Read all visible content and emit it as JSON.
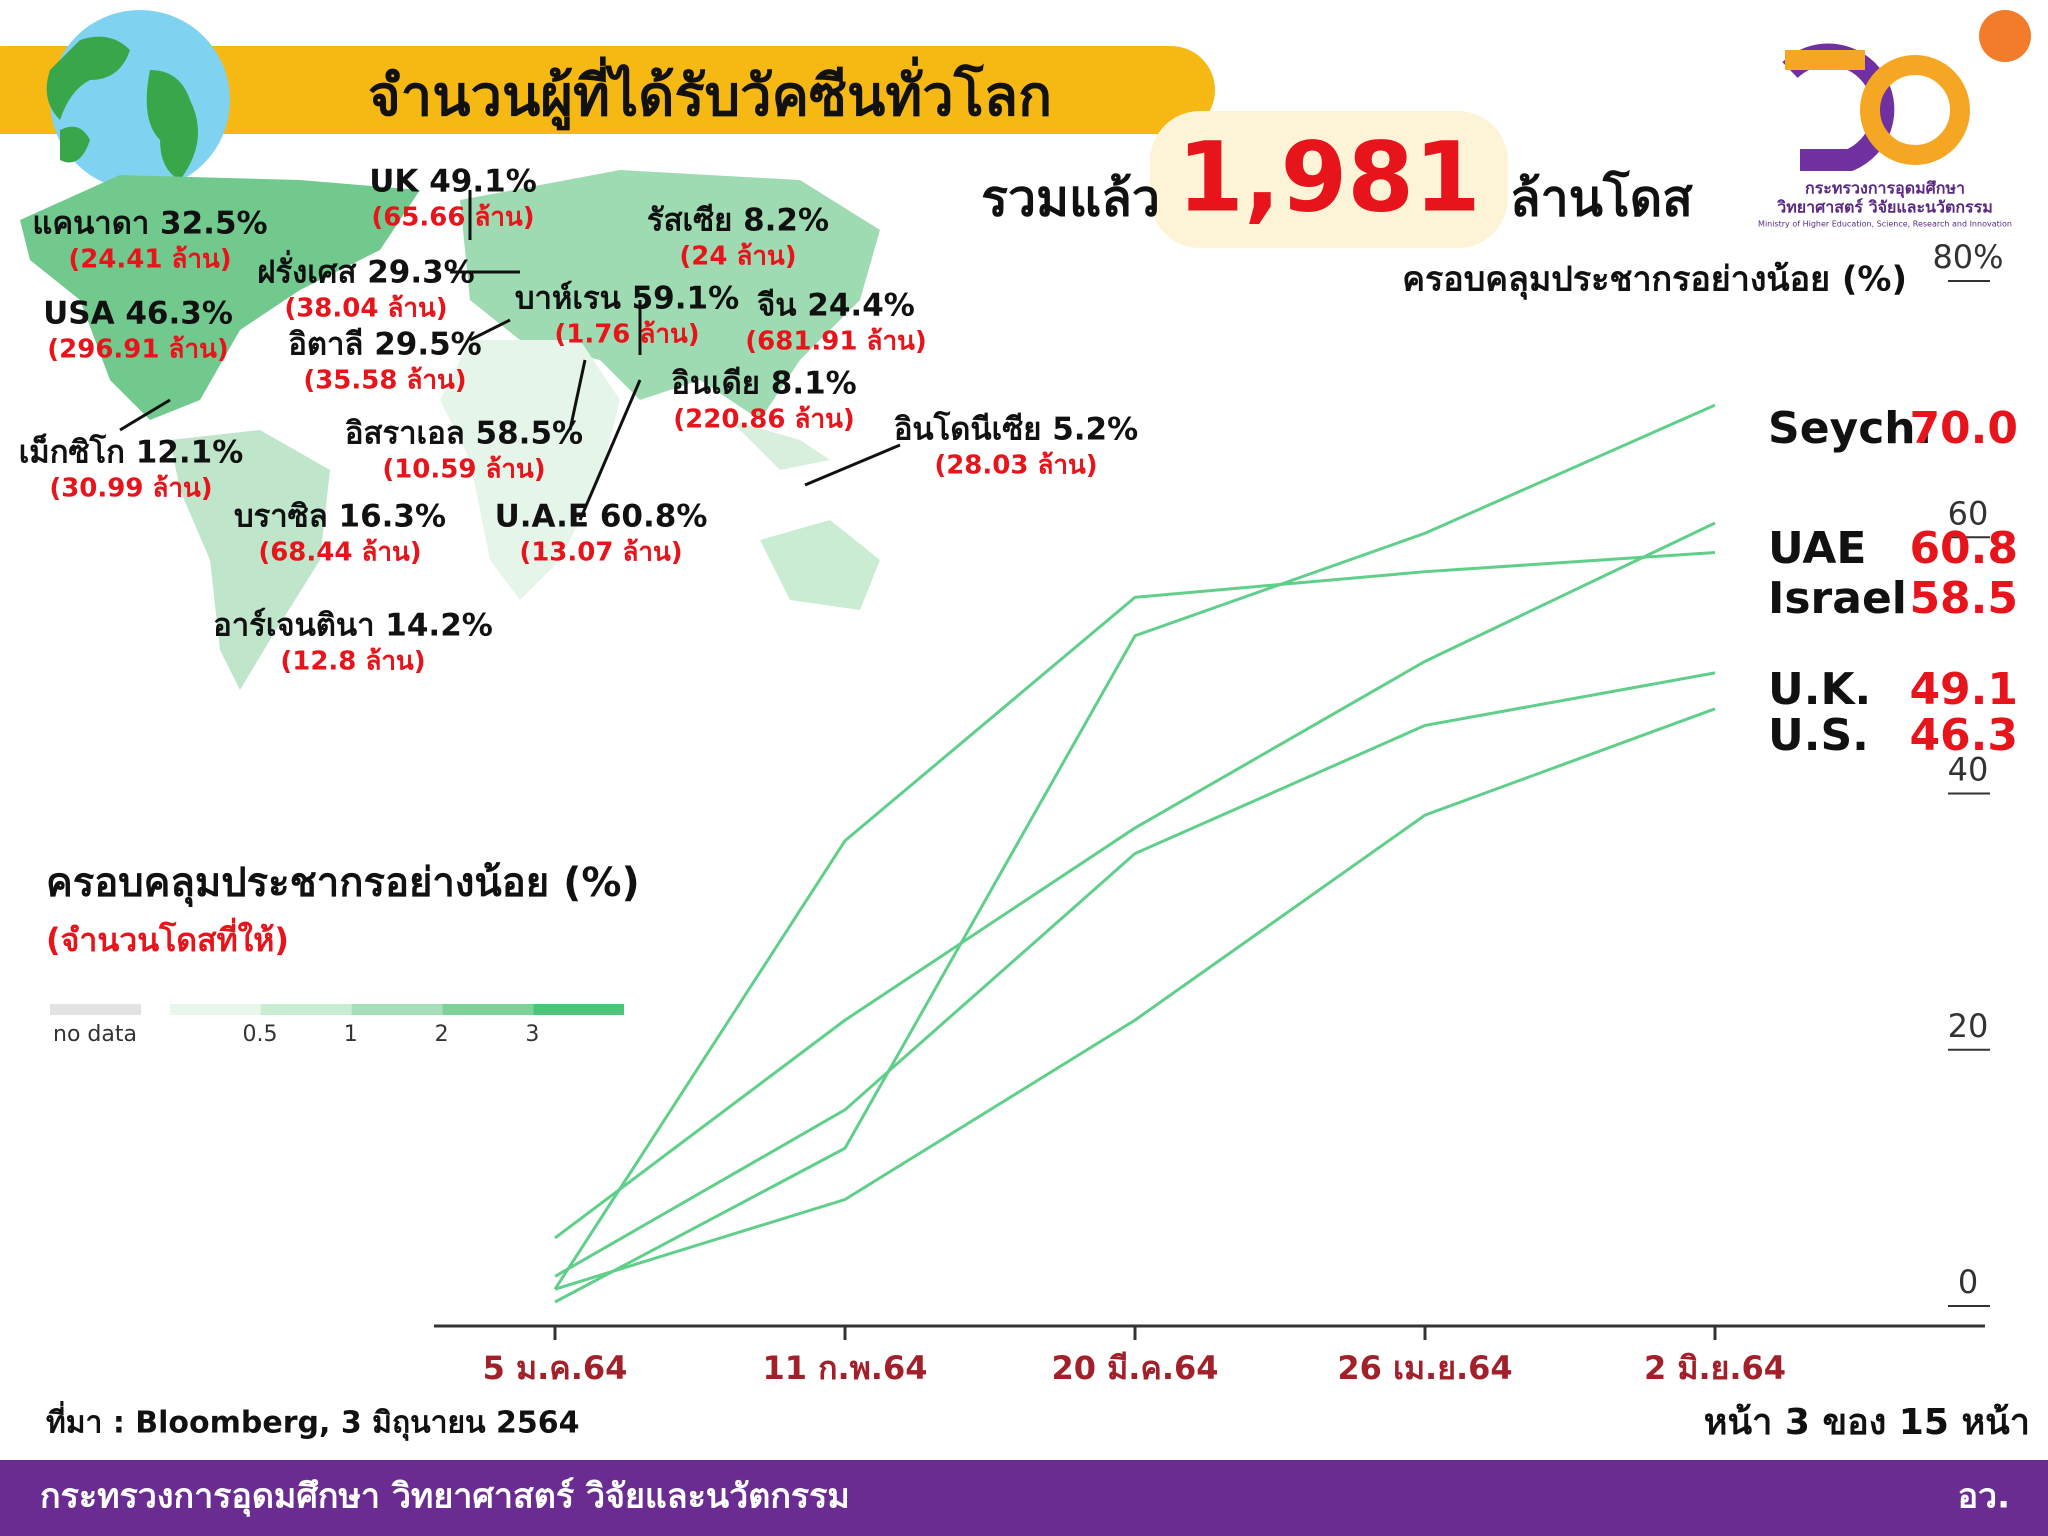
{
  "header": {
    "title": "จำนวนผู้ที่ได้รับวัคซีนทั่วโลก",
    "total_prefix": "รวมแล้ว",
    "total": "1,981",
    "total_suffix": "ล้านโดส"
  },
  "logo": {
    "line1": "กระทรวงการอุดมศึกษา",
    "line2": "วิทยาศาสตร์ วิจัยและนวัตกรรม",
    "line3": "Ministry of Higher Education, Science, Research and Innovation"
  },
  "map": {
    "annotations": [
      {
        "label": "แคนาดา 32.5%",
        "doses": "(24.41 ล้าน)"
      },
      {
        "label": "UK 49.1%",
        "doses": "(65.66 ล้าน)"
      },
      {
        "label": "USA 46.3%",
        "doses": "(296.91 ล้าน)"
      },
      {
        "label": "ฝรั่งเศส 29.3%",
        "doses": "(38.04 ล้าน)"
      },
      {
        "label": "อิตาลี 29.5%",
        "doses": "(35.58 ล้าน)"
      },
      {
        "label": "บาห์เรน 59.1%",
        "doses": "(1.76 ล้าน)"
      },
      {
        "label": "รัสเซีย 8.2%",
        "doses": "(24 ล้าน)"
      },
      {
        "label": "จีน 24.4%",
        "doses": "(681.91 ล้าน)"
      },
      {
        "label": "อินเดีย 8.1%",
        "doses": "(220.86 ล้าน)"
      },
      {
        "label": "อิสราเอล 58.5%",
        "doses": "(10.59 ล้าน)"
      },
      {
        "label": "อินโดนีเซีย 5.2%",
        "doses": "(28.03 ล้าน)"
      },
      {
        "label": "เม็กซิโก 12.1%",
        "doses": "(30.99 ล้าน)"
      },
      {
        "label": "บราซิล 16.3%",
        "doses": "(68.44 ล้าน)"
      },
      {
        "label": "U.A.E 60.8%",
        "doses": "(13.07 ล้าน)"
      },
      {
        "label": "อาร์เจนตินา 14.2%",
        "doses": "(12.8 ล้าน)"
      }
    ],
    "legend": {
      "title": "ครอบคลุมประชากรอย่างน้อย (%)",
      "subtitle": "(จำนวนโดสที่ให้)",
      "no_data": "no data",
      "ticks": [
        0.5,
        1,
        2,
        3
      ],
      "colors": [
        "#e8f6ec",
        "#c9ecd3",
        "#a6dfb7",
        "#7fd19a",
        "#4cc47a"
      ]
    }
  },
  "chart_data": {
    "type": "line",
    "y_label": "ครอบคลุมประชากรอย่างน้อย (%)",
    "x": [
      "5 ม.ค.64",
      "11 ก.พ.64",
      "20 มี.ค.64",
      "26 เม.ย.64",
      "2 มิ.ย.64"
    ],
    "ylim": [
      0,
      80
    ],
    "yticks": [
      0,
      20,
      40,
      60,
      {
        "value": 80,
        "label": "80%"
      }
    ],
    "series": [
      {
        "name": "Seych.",
        "color": "#5fcf8a",
        "values": [
          0,
          12,
          52,
          60,
          70.0
        ],
        "value_labels": [
          "",
          "",
          "",
          "",
          "70.0"
        ]
      },
      {
        "name": "UAE",
        "color": "#5fcf8a",
        "values": [
          5,
          22,
          37,
          50,
          60.8
        ],
        "value_labels": [
          "",
          "",
          "",
          "",
          "60.8"
        ]
      },
      {
        "name": "Israel",
        "color": "#5fcf8a",
        "values": [
          1,
          36,
          55,
          57,
          58.5
        ],
        "value_labels": [
          "",
          "",
          "",
          "",
          "58.5"
        ]
      },
      {
        "name": "U.K.",
        "color": "#5fcf8a",
        "values": [
          2,
          15,
          35,
          45,
          49.1
        ],
        "value_labels": [
          "",
          "",
          "",
          "",
          "49.1"
        ]
      },
      {
        "name": "U.S.",
        "color": "#5fcf8a",
        "values": [
          1,
          8,
          22,
          38,
          46.3
        ],
        "value_labels": [
          "",
          "",
          "",
          "",
          "46.3"
        ]
      }
    ]
  },
  "footer": {
    "source": "ที่มา : Bloomberg, 3 มิถุนายน 2564",
    "page": "หน้า 3 ของ 15 หน้า",
    "ministry": "กระทรวงการอุดมศึกษา วิทยาศาสตร์ วิจัยและนวัตกรรม",
    "abbr": "อว."
  }
}
